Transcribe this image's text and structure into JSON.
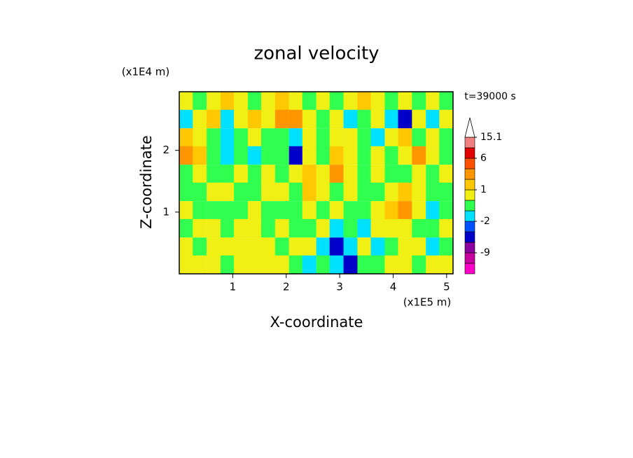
{
  "chart_data": {
    "type": "contour",
    "title": "zonal velocity",
    "x_label": "X-coordinate",
    "y_label": "Z-coordinate",
    "x_unit": "(x1E5 m)",
    "y_unit": "(x1E4 m)",
    "annotation": "t=39000 s",
    "xlim": [
      0,
      5.12
    ],
    "ylim": [
      0,
      2.95
    ],
    "xticks": [
      1,
      2,
      3,
      4,
      5
    ],
    "yticks": [
      1,
      2
    ],
    "x": [
      0.13,
      0.38,
      0.64,
      0.9,
      1.15,
      1.41,
      1.66,
      1.92,
      2.18,
      2.43,
      2.69,
      2.94,
      3.2,
      3.46,
      3.71,
      3.97,
      4.22,
      4.48,
      4.74,
      4.99
    ],
    "y": [
      2.8,
      2.51,
      2.21,
      1.92,
      1.62,
      1.33,
      1.03,
      0.74,
      0.44,
      0.15
    ],
    "z": [
      [
        0.5,
        -0.5,
        0.5,
        1.5,
        0.5,
        -0.5,
        0.5,
        1.5,
        0.5,
        -0.5,
        0.5,
        -0.5,
        0.5,
        1.5,
        0.5,
        -0.5,
        0.5,
        -0.5,
        0.5,
        -0.5
      ],
      [
        -1.5,
        0.5,
        1.5,
        -1.5,
        0.5,
        1.5,
        0.5,
        3,
        2.5,
        0.5,
        -0.5,
        0.5,
        -1.5,
        -0.5,
        0.5,
        -1.5,
        -4,
        0.5,
        -1.5,
        0.5
      ],
      [
        1.5,
        0.5,
        -0.5,
        -1.5,
        -0.5,
        0.5,
        -0.5,
        -0.5,
        -1.5,
        0.5,
        -0.5,
        0.5,
        0.5,
        -0.5,
        -1.5,
        0.5,
        1.5,
        -0.5,
        0.5,
        -0.5
      ],
      [
        3,
        1.5,
        -0.5,
        -1.5,
        -0.5,
        -1.5,
        -0.5,
        -0.5,
        -4,
        0.5,
        -0.5,
        1.5,
        0.5,
        -0.5,
        0.5,
        -0.5,
        0.5,
        3,
        0.5,
        -0.5
      ],
      [
        -0.5,
        0.5,
        -0.5,
        -0.5,
        0.5,
        -0.5,
        0.5,
        -0.5,
        0.5,
        1.5,
        0.5,
        3,
        0.5,
        -0.5,
        0.5,
        -0.5,
        -0.5,
        0.5,
        -0.5,
        0.5
      ],
      [
        -0.5,
        -0.5,
        0.5,
        0.5,
        -0.5,
        -0.5,
        0.5,
        0.5,
        -0.5,
        1.5,
        0.5,
        -0.5,
        0.5,
        -0.5,
        -0.5,
        0.5,
        1.5,
        0.5,
        -0.5,
        -0.5
      ],
      [
        0.5,
        -0.5,
        -0.5,
        -0.5,
        -0.5,
        0.5,
        -0.5,
        -0.5,
        -0.5,
        0.5,
        -0.5,
        0.5,
        -0.5,
        -0.5,
        0.5,
        1.5,
        3,
        0.5,
        -1.5,
        -0.5
      ],
      [
        -0.5,
        0.5,
        0.5,
        -0.5,
        0.5,
        0.5,
        -0.5,
        0.5,
        -0.5,
        -0.5,
        0.5,
        -1.5,
        -0.5,
        -1.5,
        0.5,
        0.5,
        0.5,
        -0.5,
        -0.5,
        0.5
      ],
      [
        0.5,
        -0.5,
        0.5,
        0.5,
        0.5,
        0.5,
        0.5,
        -0.5,
        0.5,
        0.5,
        -1.5,
        -4,
        -1.5,
        0.5,
        -1.5,
        -0.5,
        0.5,
        0.5,
        -1.5,
        -0.5
      ],
      [
        0.5,
        0.5,
        0.5,
        -0.5,
        0.5,
        0.5,
        0.5,
        0.5,
        -0.5,
        -1.5,
        -0.5,
        -1.5,
        -4,
        -0.5,
        -0.5,
        0.5,
        0.5,
        -0.5,
        0.5,
        0.5
      ]
    ],
    "colorbar": {
      "levels": [
        -15,
        -12,
        -9,
        -6,
        -3,
        -2,
        -1,
        0,
        1,
        2,
        4,
        6,
        10,
        15.1
      ],
      "colors": [
        "#ff00c8",
        "#c800a0",
        "#8c00a0",
        "#0000c8",
        "#0050ff",
        "#00e0ff",
        "#30ff50",
        "#f0f014",
        "#ffc800",
        "#ff9600",
        "#ff5000",
        "#e00000",
        "#f08080"
      ],
      "ticks": [
        15.1,
        6,
        1,
        -2,
        -9
      ]
    }
  }
}
